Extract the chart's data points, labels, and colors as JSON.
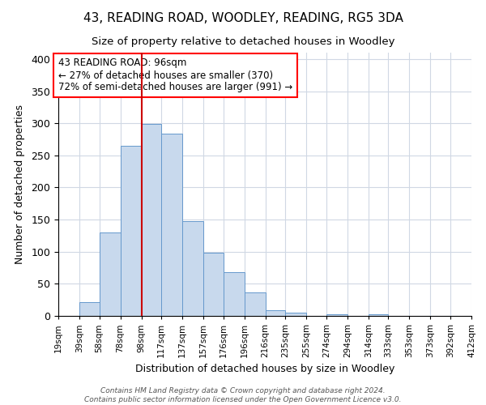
{
  "title": "43, READING ROAD, WOODLEY, READING, RG5 3DA",
  "subtitle": "Size of property relative to detached houses in Woodley",
  "xlabel": "Distribution of detached houses by size in Woodley",
  "ylabel": "Number of detached properties",
  "heights_20": [
    0,
    22,
    130,
    265,
    299,
    284,
    147,
    98,
    68,
    37,
    9,
    5,
    0,
    3,
    0,
    2,
    0,
    0,
    0,
    0
  ],
  "bin_edges": [
    19,
    39,
    58,
    78,
    98,
    117,
    137,
    157,
    176,
    196,
    216,
    235,
    255,
    274,
    294,
    314,
    333,
    353,
    373,
    392,
    412
  ],
  "bin_labels": [
    "19sqm",
    "39sqm",
    "58sqm",
    "78sqm",
    "98sqm",
    "117sqm",
    "137sqm",
    "157sqm",
    "176sqm",
    "196sqm",
    "216sqm",
    "235sqm",
    "255sqm",
    "274sqm",
    "294sqm",
    "314sqm",
    "333sqm",
    "353sqm",
    "373sqm",
    "392sqm",
    "412sqm"
  ],
  "bar_color": "#c8d9ed",
  "bar_edge_color": "#6699cc",
  "vline_x": 98,
  "vline_color": "#cc0000",
  "ylim": [
    0,
    410
  ],
  "yticks": [
    0,
    50,
    100,
    150,
    200,
    250,
    300,
    350,
    400
  ],
  "annotation_lines": [
    "43 READING ROAD: 96sqm",
    "← 27% of detached houses are smaller (370)",
    "72% of semi-detached houses are larger (991) →"
  ],
  "footer_lines": [
    "Contains HM Land Registry data © Crown copyright and database right 2024.",
    "Contains public sector information licensed under the Open Government Licence v3.0."
  ],
  "background_color": "#ffffff",
  "grid_color": "#d0d8e4"
}
